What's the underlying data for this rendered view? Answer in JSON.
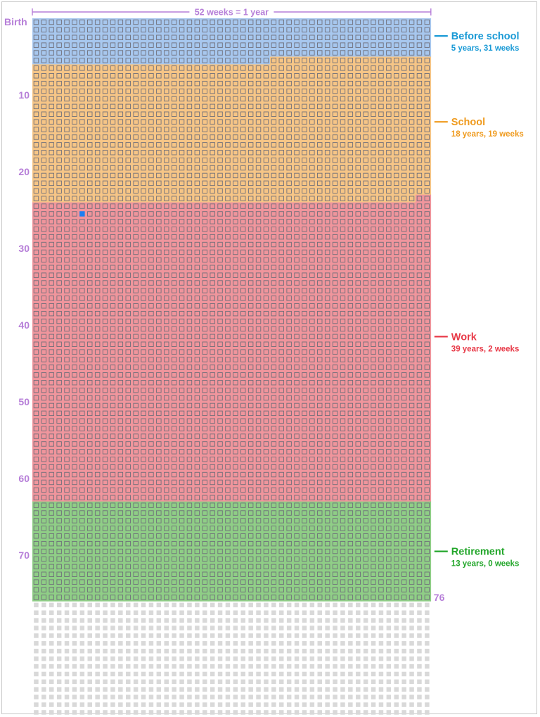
{
  "chart_data": {
    "type": "heatmap",
    "title": "52 weeks = 1 year",
    "weeks_per_year": 52,
    "total_years_shown": 91,
    "lifespan_years": 76,
    "lifespan_label": "76",
    "start_label": "Birth",
    "y_tick_labels": [
      "10",
      "20",
      "30",
      "40",
      "50",
      "60",
      "70"
    ],
    "y_ticks": [
      10,
      20,
      30,
      40,
      50,
      60,
      70
    ],
    "current_week": {
      "year": 25,
      "week": 6,
      "color": "#1e7ef0"
    },
    "unlived_color": "#d9d9d9",
    "segments": [
      {
        "name": "Before school",
        "duration": "5 years, 31 weeks",
        "years": 5,
        "weeks": 31,
        "color": "#1a9ad6",
        "fill": "#a7c7ee",
        "label_at_year": 2.3
      },
      {
        "name": "School",
        "duration": "18 years, 19 weeks",
        "years": 18,
        "weeks": 19,
        "color": "#ef9a1d",
        "fill": "#f6c586",
        "label_at_year": 13.5
      },
      {
        "name": "Work",
        "duration": "39 years, 2 weeks",
        "years": 39,
        "weeks": 2,
        "color": "#e83a48",
        "fill": "#f0959c",
        "label_at_year": 41.5
      },
      {
        "name": "Retirement",
        "duration": "13 years, 0 weeks",
        "years": 13,
        "weeks": 0,
        "color": "#22a62a",
        "fill": "#8fce86",
        "label_at_year": 69.5
      }
    ]
  }
}
